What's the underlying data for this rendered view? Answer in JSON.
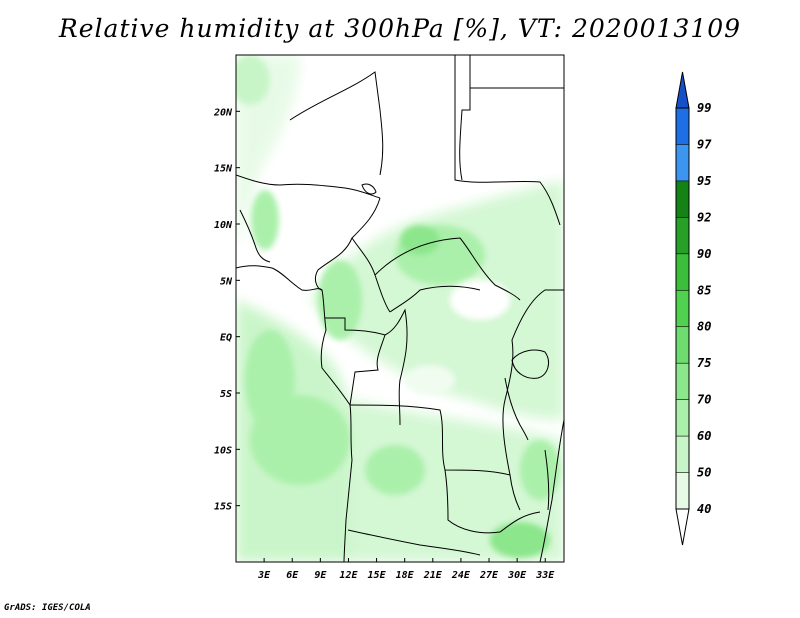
{
  "title": "Relative humidity at 300hPa [%], VT: 2020013109",
  "credit": "GrADS: IGES/COLA",
  "map": {
    "lon_range": [
      0,
      35
    ],
    "lat_range": [
      -20,
      25
    ],
    "lon_ticks": [
      {
        "value": 3,
        "label": "3E"
      },
      {
        "value": 6,
        "label": "6E"
      },
      {
        "value": 9,
        "label": "9E"
      },
      {
        "value": 12,
        "label": "12E"
      },
      {
        "value": 15,
        "label": "15E"
      },
      {
        "value": 18,
        "label": "18E"
      },
      {
        "value": 21,
        "label": "21E"
      },
      {
        "value": 24,
        "label": "24E"
      },
      {
        "value": 27,
        "label": "27E"
      },
      {
        "value": 30,
        "label": "30E"
      },
      {
        "value": 33,
        "label": "33E"
      }
    ],
    "lat_ticks": [
      {
        "value": 20,
        "label": "20N"
      },
      {
        "value": 15,
        "label": "15N"
      },
      {
        "value": 10,
        "label": "10N"
      },
      {
        "value": 5,
        "label": "5N"
      },
      {
        "value": 0,
        "label": "EQ"
      },
      {
        "value": -5,
        "label": "5S"
      },
      {
        "value": -10,
        "label": "10S"
      },
      {
        "value": -15,
        "label": "15S"
      }
    ]
  },
  "colorbar": {
    "levels": [
      "40",
      "50",
      "60",
      "70",
      "75",
      "80",
      "85",
      "90",
      "92",
      "95",
      "97",
      "99"
    ],
    "colors": [
      "#ffffff",
      "#e6fae6",
      "#c8f5c8",
      "#aaf0aa",
      "#8ce68c",
      "#6edc6e",
      "#50d250",
      "#3cbe3c",
      "#28a028",
      "#148214",
      "#3c96f0",
      "#1e6ee6",
      "#1450c8"
    ]
  }
}
